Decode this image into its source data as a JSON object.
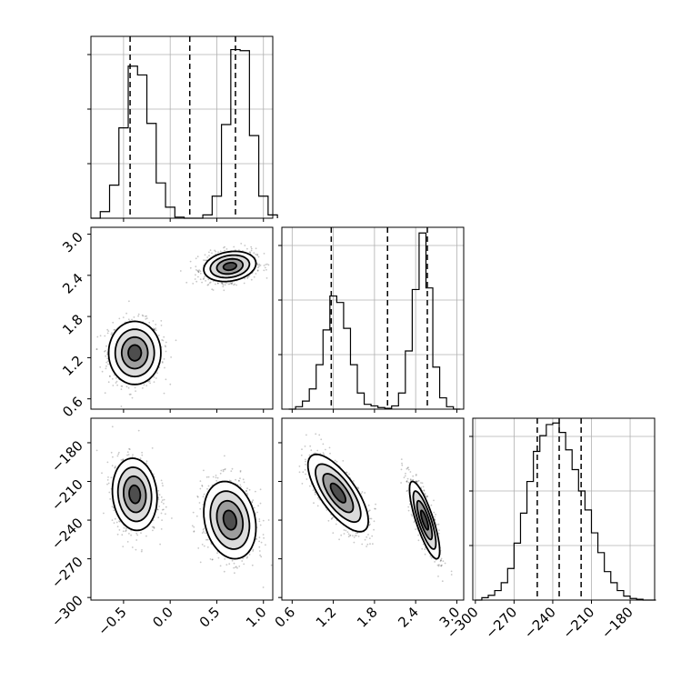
{
  "figure": {
    "background": "#ffffff",
    "line_color": "#000000",
    "grid_color": "#b0b0b0"
  },
  "chart_data": {
    "type": "corner",
    "parameters": [
      {
        "range": [
          -0.85,
          1.1
        ],
        "ticks": [
          -0.5,
          0.0,
          0.5,
          1.0
        ],
        "tick_labels": [
          "−0.5",
          "0.0",
          "0.5",
          "1.0"
        ]
      },
      {
        "range": [
          0.45,
          3.1
        ],
        "ticks": [
          0.6,
          1.2,
          1.8,
          2.4,
          3.0
        ],
        "tick_labels": [
          "0.6",
          "1.2",
          "1.8",
          "2.4",
          "3.0"
        ]
      },
      {
        "range": [
          -302,
          -161
        ],
        "ticks": [
          -300,
          -270,
          -240,
          -210,
          -180
        ],
        "tick_labels": [
          "−300",
          "−270",
          "−240",
          "−210",
          "−180"
        ]
      }
    ],
    "histograms": [
      {
        "bins": [
          -0.85,
          -0.75,
          -0.65,
          -0.55,
          -0.45,
          -0.35,
          -0.25,
          -0.15,
          -0.05,
          0.05,
          0.15,
          0.25,
          0.35,
          0.45,
          0.55,
          0.65,
          0.75,
          0.85,
          0.95,
          1.05
        ],
        "counts": [
          0,
          6,
          30,
          82,
          138,
          130,
          86,
          32,
          10,
          1,
          0,
          0,
          3,
          20,
          85,
          153,
          152,
          75,
          20,
          3
        ],
        "max": 165,
        "quantiles": [
          -0.43,
          0.21,
          0.7
        ]
      },
      {
        "bins": [
          0.55,
          0.65,
          0.75,
          0.85,
          0.95,
          1.05,
          1.15,
          1.25,
          1.35,
          1.45,
          1.55,
          1.65,
          1.75,
          1.85,
          1.95,
          2.05,
          2.15,
          2.25,
          2.35,
          2.45,
          2.55,
          2.65,
          2.75,
          2.85,
          2.95
        ],
        "counts": [
          0,
          3,
          10,
          25,
          55,
          98,
          140,
          132,
          100,
          55,
          20,
          6,
          4,
          2,
          1,
          4,
          20,
          72,
          148,
          218,
          150,
          52,
          14,
          3,
          0
        ],
        "max": 225,
        "quantiles": [
          1.17,
          1.99,
          2.57
        ]
      },
      {
        "bins": [
          -300,
          -295,
          -290,
          -285,
          -280,
          -275,
          -270,
          -265,
          -260,
          -255,
          -250,
          -245,
          -240,
          -235,
          -230,
          -225,
          -220,
          -215,
          -210,
          -205,
          -200,
          -195,
          -190,
          -185,
          -180,
          -175,
          -170,
          -165
        ],
        "counts": [
          0,
          3,
          6,
          12,
          22,
          40,
          72,
          110,
          150,
          188,
          208,
          222,
          224,
          212,
          190,
          165,
          138,
          114,
          85,
          60,
          36,
          22,
          12,
          5,
          2,
          1,
          0,
          0
        ],
        "max": 230,
        "quantiles": [
          -252.0,
          -235.0,
          -218.0
        ]
      }
    ],
    "joint_2d": [
      {
        "x_param": 0,
        "y_param": 1,
        "clusters": [
          {
            "center": [
              -0.38,
              1.27
            ],
            "sigma": [
              0.14,
              0.23
            ],
            "rho": 0.0,
            "weight": 0.5
          },
          {
            "center": [
              0.64,
              2.53
            ],
            "sigma": [
              0.14,
              0.11
            ],
            "rho": 0.2,
            "weight": 0.5
          }
        ]
      },
      {
        "x_param": 0,
        "y_param": 2,
        "clusters": [
          {
            "center": [
              -0.38,
              -220.0
            ],
            "sigma": [
              0.12,
              14.0
            ],
            "rho": -0.1,
            "weight": 0.5
          },
          {
            "center": [
              0.64,
              -240.0
            ],
            "sigma": [
              0.14,
              15.0
            ],
            "rho": -0.2,
            "weight": 0.5
          }
        ]
      },
      {
        "x_param": 1,
        "y_param": 2,
        "clusters": [
          {
            "center": [
              1.27,
              -219.0
            ],
            "sigma": [
              0.22,
              15.0
            ],
            "rho": -0.72,
            "weight": 0.5
          },
          {
            "center": [
              2.53,
              -240.0
            ],
            "sigma": [
              0.11,
              15.0
            ],
            "rho": -0.8,
            "weight": 0.5
          }
        ]
      }
    ],
    "contour_levels_sigma": [
      0.5,
      1.0,
      1.5,
      2.0
    ],
    "grid": true
  }
}
